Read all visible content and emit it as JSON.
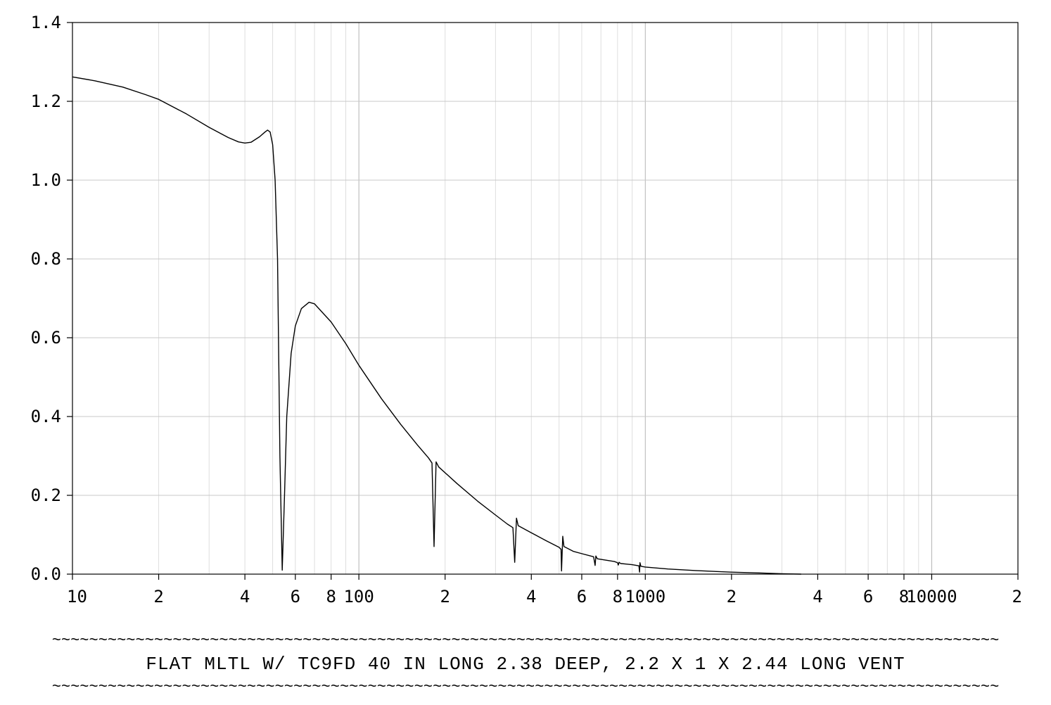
{
  "chart_data": {
    "type": "line",
    "title": "FLAT MLTL W/ TC9FD 40 IN LONG 2.38 DEEP, 2.2 X 1 X 2.44 LONG VENT",
    "separator": "~~~~~~~~~~~~~~~~~~~~~~~~~~~~~~~~~~~~~~~~~~~~~~~~~~~~~~~~~~~~~~~~~~~~~~~~~~~~~~~~~~~~~~~~~~~~~~~~~~~~~~",
    "xscale": "log",
    "xlim": [
      10,
      20000
    ],
    "ylim": [
      0,
      1.4
    ],
    "grid": true,
    "xlabel": "",
    "ylabel": "",
    "x_tick_labels": [
      {
        "value": 10,
        "label": "10"
      },
      {
        "value": 20,
        "label": "2"
      },
      {
        "value": 40,
        "label": "4"
      },
      {
        "value": 60,
        "label": "6"
      },
      {
        "value": 80,
        "label": "8"
      },
      {
        "value": 100,
        "label": "100"
      },
      {
        "value": 200,
        "label": "2"
      },
      {
        "value": 400,
        "label": "4"
      },
      {
        "value": 600,
        "label": "6"
      },
      {
        "value": 800,
        "label": "8"
      },
      {
        "value": 1000,
        "label": "1000"
      },
      {
        "value": 2000,
        "label": "2"
      },
      {
        "value": 4000,
        "label": "4"
      },
      {
        "value": 6000,
        "label": "6"
      },
      {
        "value": 8000,
        "label": "8"
      },
      {
        "value": 10000,
        "label": "10000"
      },
      {
        "value": 20000,
        "label": "2"
      }
    ],
    "y_tick_labels": [
      {
        "value": 0.0,
        "label": "0.0"
      },
      {
        "value": 0.2,
        "label": "0.2"
      },
      {
        "value": 0.4,
        "label": "0.4"
      },
      {
        "value": 0.6,
        "label": "0.6"
      },
      {
        "value": 0.8,
        "label": "0.8"
      },
      {
        "value": 1.0,
        "label": "1.0"
      },
      {
        "value": 1.2,
        "label": "1.2"
      },
      {
        "value": 1.4,
        "label": "1.4"
      }
    ],
    "series": [
      {
        "color": "#000000",
        "points": [
          [
            10,
            1.262
          ],
          [
            12,
            1.252
          ],
          [
            15,
            1.236
          ],
          [
            18,
            1.217
          ],
          [
            20,
            1.205
          ],
          [
            25,
            1.168
          ],
          [
            30,
            1.134
          ],
          [
            35,
            1.108
          ],
          [
            38,
            1.097
          ],
          [
            40,
            1.094
          ],
          [
            42,
            1.096
          ],
          [
            45,
            1.11
          ],
          [
            47,
            1.122
          ],
          [
            48,
            1.127
          ],
          [
            49,
            1.122
          ],
          [
            50,
            1.09
          ],
          [
            51,
            1.0
          ],
          [
            52,
            0.8
          ],
          [
            53,
            0.3
          ],
          [
            54,
            0.01
          ],
          [
            55,
            0.2
          ],
          [
            56,
            0.4
          ],
          [
            58,
            0.56
          ],
          [
            60,
            0.63
          ],
          [
            63,
            0.674
          ],
          [
            67,
            0.69
          ],
          [
            70,
            0.686
          ],
          [
            80,
            0.64
          ],
          [
            90,
            0.585
          ],
          [
            100,
            0.53
          ],
          [
            120,
            0.445
          ],
          [
            140,
            0.38
          ],
          [
            160,
            0.328
          ],
          [
            175,
            0.295
          ],
          [
            180,
            0.282
          ],
          [
            183,
            0.07
          ],
          [
            186,
            0.285
          ],
          [
            190,
            0.272
          ],
          [
            220,
            0.23
          ],
          [
            260,
            0.185
          ],
          [
            300,
            0.15
          ],
          [
            330,
            0.127
          ],
          [
            345,
            0.118
          ],
          [
            350,
            0.03
          ],
          [
            355,
            0.142
          ],
          [
            360,
            0.123
          ],
          [
            400,
            0.105
          ],
          [
            450,
            0.085
          ],
          [
            500,
            0.068
          ],
          [
            508,
            0.063
          ],
          [
            510,
            0.008
          ],
          [
            515,
            0.096
          ],
          [
            520,
            0.07
          ],
          [
            560,
            0.058
          ],
          [
            600,
            0.052
          ],
          [
            660,
            0.044
          ],
          [
            668,
            0.022
          ],
          [
            672,
            0.046
          ],
          [
            680,
            0.039
          ],
          [
            780,
            0.032
          ],
          [
            800,
            0.029
          ],
          [
            805,
            0.023
          ],
          [
            810,
            0.03
          ],
          [
            820,
            0.027
          ],
          [
            900,
            0.024
          ],
          [
            950,
            0.021
          ],
          [
            955,
            0.005
          ],
          [
            958,
            0.029
          ],
          [
            965,
            0.02
          ],
          [
            1000,
            0.018
          ],
          [
            1200,
            0.013
          ],
          [
            1500,
            0.009
          ],
          [
            2000,
            0.005
          ],
          [
            2500,
            0.003
          ],
          [
            3000,
            0.001
          ],
          [
            3500,
            0.0
          ]
        ]
      }
    ]
  }
}
